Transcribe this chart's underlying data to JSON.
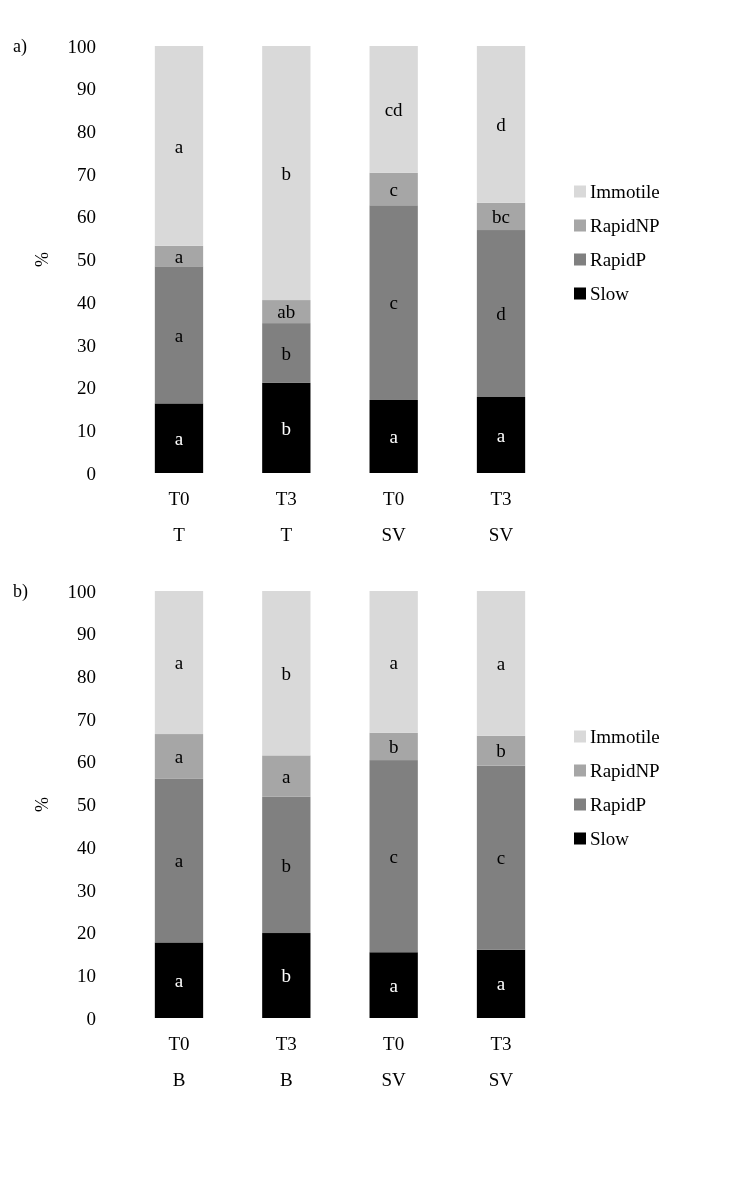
{
  "chart_data": [
    {
      "type": "bar",
      "title": "a)",
      "ylabel": "%",
      "categories": [
        "T0\nT",
        "T3\nT",
        "T0\nSV",
        "T3\nSV"
      ],
      "stacked": true,
      "legend": "right",
      "ylim": [
        0,
        100
      ],
      "yticks": [
        0,
        10,
        20,
        30,
        40,
        50,
        60,
        70,
        80,
        90,
        100
      ],
      "series": [
        {
          "name": "Slow",
          "color": "#000000",
          "values": [
            16.3,
            21.1,
            17.1,
            17.8
          ],
          "value_labels": [
            "a",
            "b",
            "a",
            "a"
          ]
        },
        {
          "name": "RapidP",
          "color": "#808080",
          "values": [
            32.1,
            14.0,
            45.6,
            39.1
          ],
          "value_labels": [
            "a",
            "b",
            "c",
            "d"
          ]
        },
        {
          "name": "RapidNP",
          "color": "#a6a6a6",
          "values": [
            4.8,
            5.4,
            7.6,
            6.4
          ],
          "value_labels": [
            "a",
            "ab",
            "c",
            "bc"
          ]
        },
        {
          "name": "Immotile",
          "color": "#d9d9d9",
          "values": [
            46.8,
            59.5,
            29.7,
            36.7
          ],
          "value_labels": [
            "a",
            "b",
            "cd",
            "d"
          ]
        }
      ]
    },
    {
      "type": "bar",
      "title": "b)",
      "ylabel": "%",
      "categories": [
        "T0\nB",
        "T3\nB",
        "T0\nSV",
        "T3\nSV"
      ],
      "stacked": true,
      "legend": "right",
      "ylim": [
        0,
        100
      ],
      "yticks": [
        0,
        10,
        20,
        30,
        40,
        50,
        60,
        70,
        80,
        90,
        100
      ],
      "series": [
        {
          "name": "Slow",
          "color": "#000000",
          "values": [
            17.7,
            19.9,
            15.4,
            16.0
          ],
          "value_labels": [
            "a",
            "b",
            "a",
            "a"
          ]
        },
        {
          "name": "RapidP",
          "color": "#808080",
          "values": [
            38.3,
            31.9,
            45.0,
            43.1
          ],
          "value_labels": [
            "a",
            "b",
            "c",
            "c"
          ]
        },
        {
          "name": "RapidNP",
          "color": "#a6a6a6",
          "values": [
            10.5,
            9.7,
            6.4,
            7.0
          ],
          "value_labels": [
            "a",
            "a",
            "b",
            "b"
          ]
        },
        {
          "name": "Immotile",
          "color": "#d9d9d9",
          "values": [
            33.5,
            38.5,
            33.2,
            33.9
          ],
          "value_labels": [
            "a",
            "b",
            "a",
            "a"
          ]
        }
      ]
    }
  ]
}
